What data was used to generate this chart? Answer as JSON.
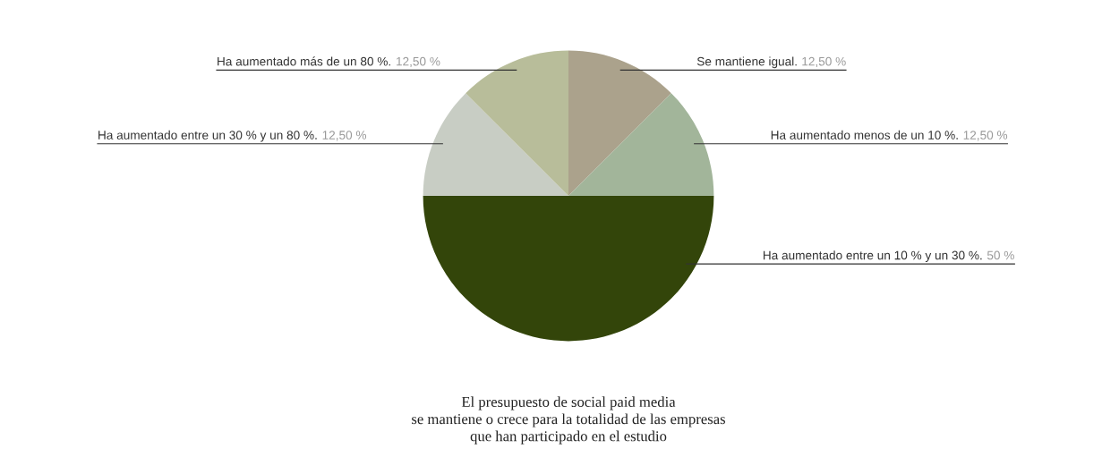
{
  "chart_data": {
    "type": "pie",
    "categories": [
      "Se mantiene igual.",
      "Ha aumentado menos de un 10 %.",
      "Ha aumentado entre un 10 % y un 30 %.",
      "Ha aumentado entre un 30 % y un 80 %.",
      "Ha aumentado más de un 80 %."
    ],
    "values": [
      12.5,
      12.5,
      50,
      12.5,
      12.5
    ],
    "value_labels": [
      "12,50 %",
      "12,50 %",
      "50 %",
      "12,50 %",
      "12,50 %"
    ],
    "colors": [
      "#aba28c",
      "#a2b59a",
      "#33450a",
      "#c8cdc4",
      "#b8bd9a"
    ],
    "annotations": [
      "El presupuesto de social paid media\nse mantiene o crece para la totalidad de las empresas\nque han participado en el estudio"
    ]
  }
}
